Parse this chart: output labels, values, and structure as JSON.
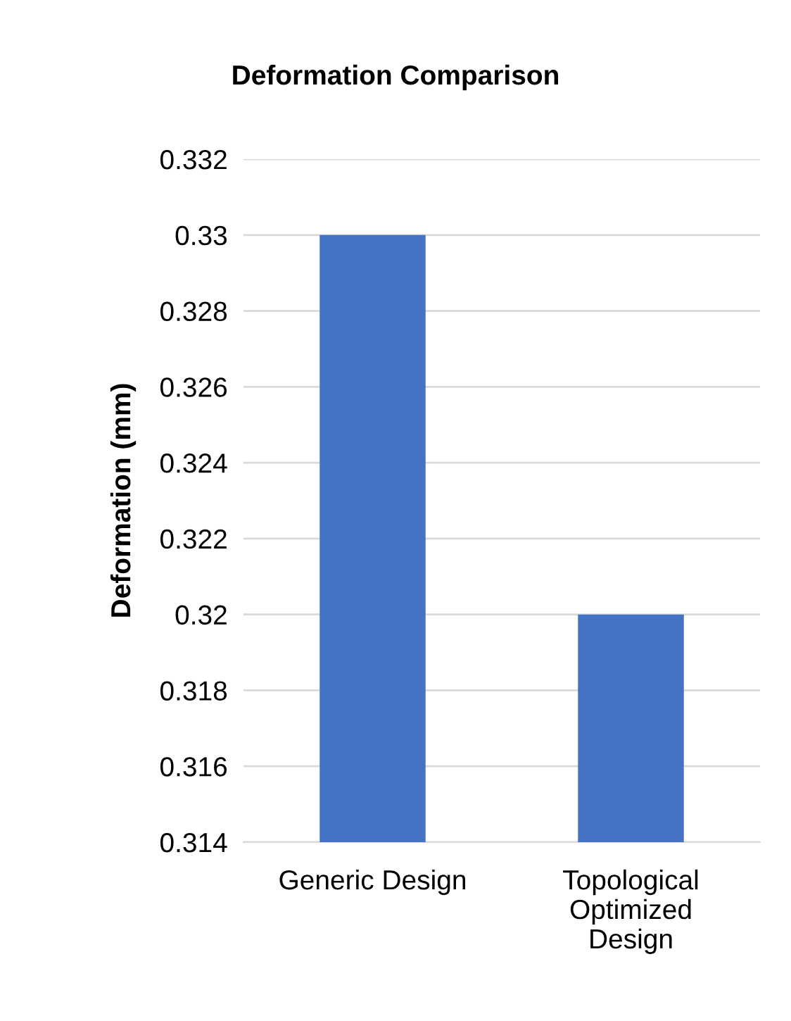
{
  "chart_data": {
    "type": "bar",
    "title": "Deformation Comparison",
    "ylabel": "Deformation (mm)",
    "categories": [
      "Generic Design",
      "Topological Optimized Design"
    ],
    "values": [
      0.33,
      0.32
    ],
    "color": "#4472c4",
    "ylim": [
      0.314,
      0.332
    ],
    "yticks": [
      0.314,
      0.316,
      0.318,
      0.32,
      0.322,
      0.324,
      0.326,
      0.328,
      0.33,
      0.332
    ],
    "grid": "y",
    "legend": false
  }
}
